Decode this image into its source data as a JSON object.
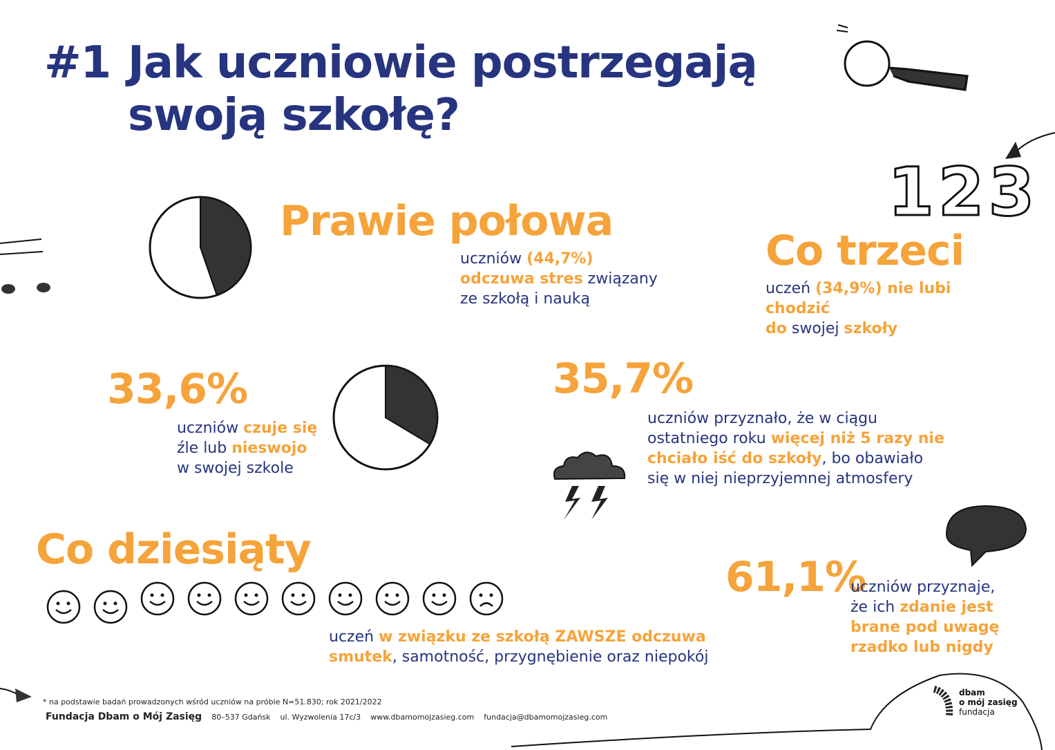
{
  "title": {
    "number": "#1",
    "line1_bold": "Jak uczniowie",
    "line1_rest": "postrzegają",
    "line2": "swoją szkołę?"
  },
  "colors": {
    "navy": "#27347f",
    "orange": "#f5a33a"
  },
  "stats": [
    {
      "headline": "Prawie połowa",
      "segments": [
        "uczniów ",
        "(44,7%)",
        "odczuwa stres",
        " związany",
        "ze szkołą i nauką"
      ],
      "pie_fraction": 0.447
    },
    {
      "headline": "Co trzeci",
      "segments": [
        "uczeń ",
        "(34,9%) nie lubi",
        "chodzić",
        "do",
        " swojej ",
        "szkoły"
      ]
    },
    {
      "headline": "33,6%",
      "segments": [
        "uczniów ",
        "czuje się",
        "źle lub ",
        "nieswojo",
        "w swojej szkole"
      ],
      "pie_fraction": 0.336
    },
    {
      "headline": "35,7%",
      "segments": [
        "uczniów przyznało, że w ciągu",
        "ostatniego roku ",
        "więcej niż 5 razy nie",
        "chciało iść do szkoły",
        ", bo obawiało",
        "się w niej nieprzyjemnej atmosfery"
      ]
    },
    {
      "headline": "Co dziesiąty",
      "segments": [
        "uczeń ",
        "w związku ze szkołą ZAWSZE odczuwa",
        "smutek",
        ", samotność, przygnębienie oraz niepokój"
      ]
    },
    {
      "headline": "61,1%",
      "segments": [
        "uczniów przyznaje,",
        "że ich ",
        "zdanie jest",
        "brane pod uwagę",
        "rzadko lub nigdy"
      ]
    }
  ],
  "doodle_numbers": "123",
  "footer": {
    "note": "* na podstawie badań prowadzonych wśród uczniów na próbie N=51.830; rok 2021/2022",
    "org": "Fundacja Dbam o Mój Zasięg",
    "city": "80–537 Gdańsk",
    "street": "ul. Wyzwolenia 17c/3",
    "www": "www.dbamomojzasieg.com",
    "email": "fundacja@dbamomojzasieg.com"
  },
  "logo": {
    "line1": "dbam",
    "line2": "o mój zasięg",
    "line3": "fundacja"
  }
}
